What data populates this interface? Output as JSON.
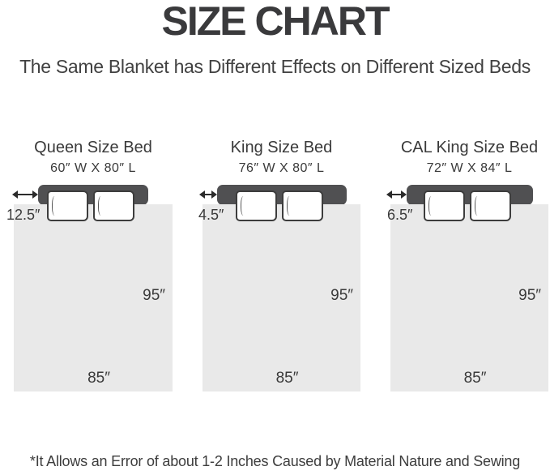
{
  "header": {
    "title": "SIZE CHART",
    "subtitle": "The Same Blanket has Different Effects on Different Sized Beds"
  },
  "beds": [
    {
      "name": "Queen Size Bed",
      "dimensions": "60″ W X 80″ L",
      "overhang": "12.5″",
      "blanket_length": "95″",
      "blanket_width": "85″"
    },
    {
      "name": "King Size Bed",
      "dimensions": "76″ W X 80″ L",
      "overhang": "4.5″",
      "blanket_length": "95″",
      "blanket_width": "85″"
    },
    {
      "name": "CAL King Size Bed",
      "dimensions": "72″ W X 84″ L",
      "overhang": "6.5″",
      "blanket_length": "95″",
      "blanket_width": "85″"
    }
  ],
  "footer": {
    "note": "*It Allows an Error of about 1-2 Inches Caused by Material Nature and Sewing"
  },
  "colors": {
    "headboard": "#505052",
    "blanket": "#e9e9e9",
    "text": "#3a3a3c"
  }
}
